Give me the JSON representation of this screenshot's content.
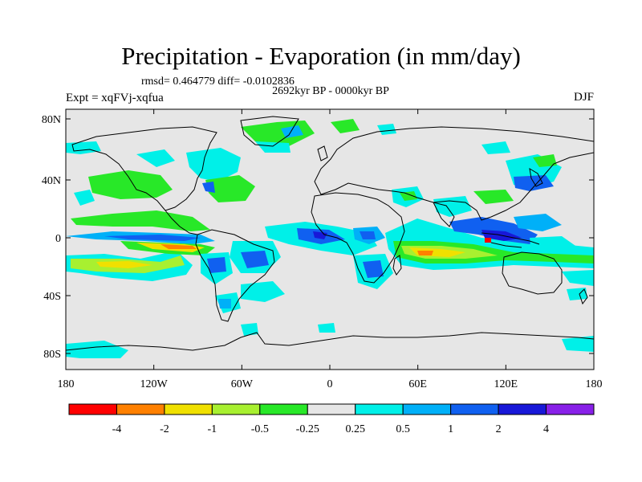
{
  "title": "Precipitation - Evaporation (in mm/day)",
  "stats": "rmsd= 0.464779 diff= -0.0102836",
  "period": "2692kyr BP - 0000kyr BP",
  "experiment": "Expt = xqFVj-xqfua",
  "season": "DJF",
  "map": {
    "ocean_color": "#e6e6e6",
    "lon_ticks": [
      "180",
      "120W",
      "60W",
      "0",
      "60E",
      "120E",
      "180"
    ],
    "lat_ticks": [
      "80N",
      "40N",
      "0",
      "40S",
      "80S"
    ]
  },
  "colorbar": {
    "labels": [
      "-4",
      "-2",
      "-1",
      "-0.5",
      "-0.25",
      "0.25",
      "0.5",
      "1",
      "2",
      "4"
    ],
    "colors": [
      "#ff0000",
      "#ff8000",
      "#f0e000",
      "#a8f030",
      "#28e828",
      "#e6e6e6",
      "#00f0e8",
      "#00b0f8",
      "#1060f0",
      "#1818d8",
      "#8820e8"
    ]
  }
}
